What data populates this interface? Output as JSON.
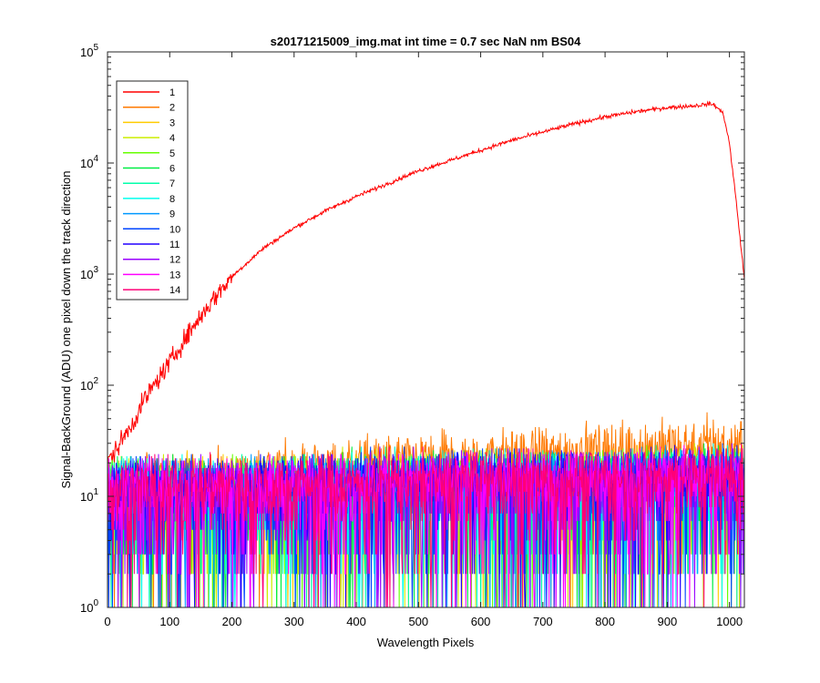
{
  "chart_data": {
    "type": "line",
    "title": "s20171215009_img.mat int time = 0.7 sec  NaN nm BS04",
    "xlabel": "Wavelength Pixels",
    "ylabel": "Signal-BackGround (ADU) one pixel down the track direction",
    "xlim": [
      0,
      1024
    ],
    "ylim": [
      1,
      100000
    ],
    "yscale": "log",
    "grid": false,
    "legend_position": "top-left",
    "x_ticks": [
      0,
      100,
      200,
      300,
      400,
      500,
      600,
      700,
      800,
      900,
      1000
    ],
    "y_ticks": [
      {
        "value": 1,
        "base": "10",
        "exp": "0"
      },
      {
        "value": 10,
        "base": "10",
        "exp": "1"
      },
      {
        "value": 100,
        "base": "10",
        "exp": "2"
      },
      {
        "value": 1000,
        "base": "10",
        "exp": "3"
      },
      {
        "value": 10000,
        "base": "10",
        "exp": "4"
      },
      {
        "value": 100000,
        "base": "10",
        "exp": "5"
      }
    ],
    "series": [
      {
        "name": "1",
        "color": "#ff0000",
        "profile": [
          [
            0,
            20
          ],
          [
            20,
            30
          ],
          [
            40,
            45
          ],
          [
            60,
            75
          ],
          [
            80,
            110
          ],
          [
            100,
            160
          ],
          [
            120,
            240
          ],
          [
            140,
            350
          ],
          [
            160,
            500
          ],
          [
            180,
            700
          ],
          [
            200,
            950
          ],
          [
            250,
            1700
          ],
          [
            300,
            2600
          ],
          [
            350,
            3700
          ],
          [
            400,
            5000
          ],
          [
            450,
            6500
          ],
          [
            500,
            8500
          ],
          [
            550,
            10500
          ],
          [
            600,
            13000
          ],
          [
            650,
            16000
          ],
          [
            700,
            19000
          ],
          [
            750,
            22500
          ],
          [
            800,
            26000
          ],
          [
            850,
            29000
          ],
          [
            900,
            31500
          ],
          [
            950,
            33000
          ],
          [
            965,
            34000
          ],
          [
            975,
            33500
          ],
          [
            990,
            28000
          ],
          [
            1000,
            15000
          ],
          [
            1010,
            5000
          ],
          [
            1024,
            900
          ]
        ]
      },
      {
        "name": "2",
        "color": "#ff7a00",
        "level_start": 12,
        "level_end": 30
      },
      {
        "name": "3",
        "color": "#ffcc00",
        "level_start": 12,
        "level_end": 16
      },
      {
        "name": "4",
        "color": "#ccee00",
        "level_start": 12,
        "level_end": 16
      },
      {
        "name": "5",
        "color": "#66ff00",
        "level_start": 12,
        "level_end": 16
      },
      {
        "name": "6",
        "color": "#00ee44",
        "level_start": 12,
        "level_end": 16
      },
      {
        "name": "7",
        "color": "#00ffaa",
        "level_start": 12,
        "level_end": 16
      },
      {
        "name": "8",
        "color": "#00ffee",
        "level_start": 12,
        "level_end": 16
      },
      {
        "name": "9",
        "color": "#0099ff",
        "level_start": 12,
        "level_end": 16
      },
      {
        "name": "10",
        "color": "#0044ff",
        "level_start": 12,
        "level_end": 16
      },
      {
        "name": "11",
        "color": "#2200ff",
        "level_start": 12,
        "level_end": 16
      },
      {
        "name": "12",
        "color": "#9900ff",
        "level_start": 12,
        "level_end": 16
      },
      {
        "name": "13",
        "color": "#ff00ff",
        "level_start": 12,
        "level_end": 16
      },
      {
        "name": "14",
        "color": "#ff0077",
        "level_start": 12,
        "level_end": 16
      }
    ]
  }
}
